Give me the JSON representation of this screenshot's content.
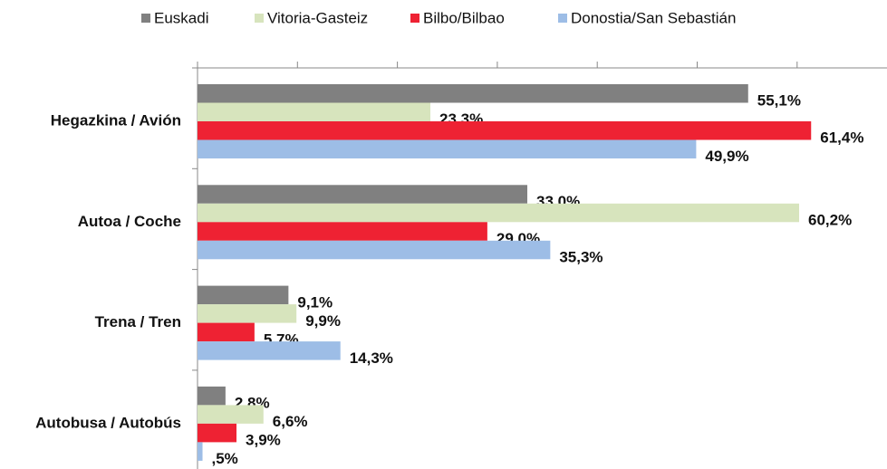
{
  "chart_data": {
    "type": "bar",
    "orientation": "horizontal",
    "categories": [
      "Hegazkina / Avión",
      "Autoa / Coche",
      "Trena / Tren",
      "Autobusa / Autobús"
    ],
    "series": [
      {
        "name": "Euskadi",
        "color": "#808080",
        "values": [
          55.1,
          33.0,
          9.1,
          2.8
        ],
        "value_labels": [
          "55,1%",
          "33,0%",
          "9,1%",
          "2,8%"
        ]
      },
      {
        "name": "Vitoria-Gasteiz",
        "color": "#d7e4bd",
        "values": [
          23.3,
          60.2,
          9.9,
          6.6
        ],
        "value_labels": [
          "23,3%",
          "60,2%",
          "9,9%",
          "6,6%"
        ]
      },
      {
        "name": "Bilbo/Bilbao",
        "color": "#ee2233",
        "values": [
          61.4,
          29.0,
          5.7,
          3.9
        ],
        "value_labels": [
          "61,4%",
          "29,0%",
          "5,7%",
          "3,9%"
        ]
      },
      {
        "name": "Donostia/San Sebastián",
        "color": "#9dbde6",
        "values": [
          49.9,
          35.3,
          14.3,
          0.5
        ],
        "value_labels": [
          "49,9%",
          "35,3%",
          "14,3%",
          ",5%"
        ]
      }
    ],
    "xlim": [
      0,
      69
    ],
    "xticks": [
      0,
      10,
      20,
      30,
      40,
      50,
      60
    ],
    "legend": "top"
  }
}
